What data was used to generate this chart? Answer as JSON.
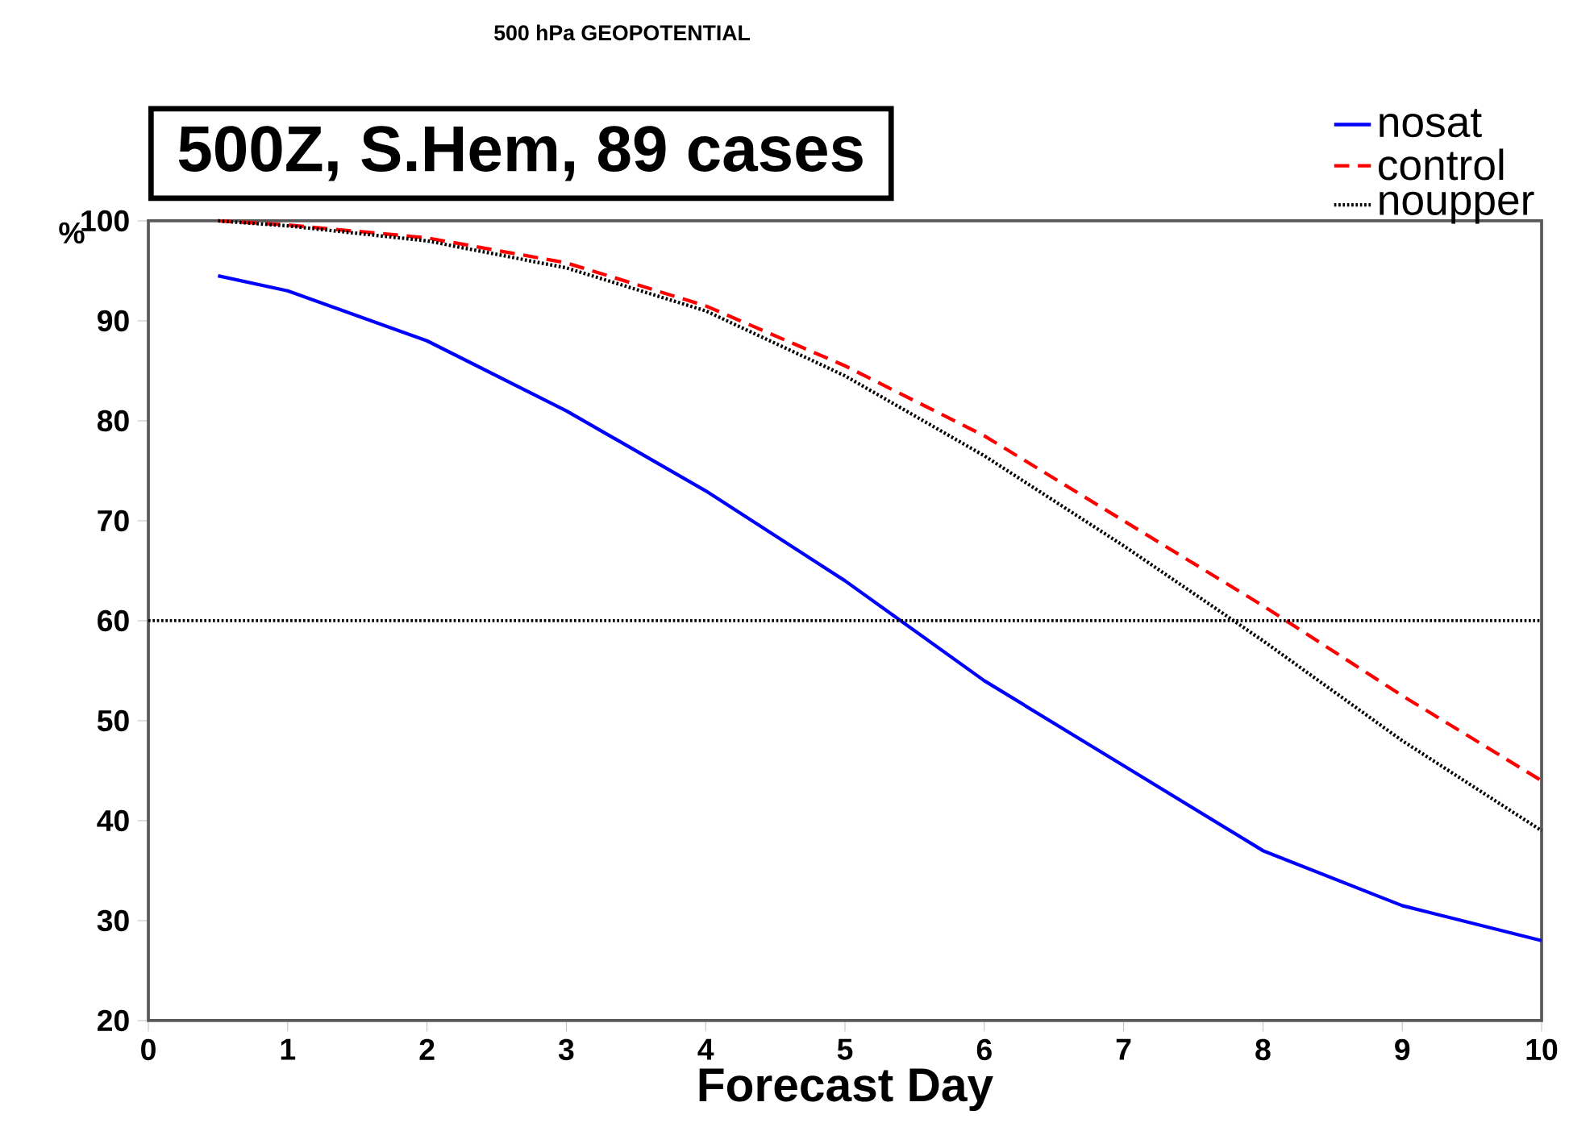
{
  "chart_data": {
    "type": "line",
    "title": "500 hPa GEOPOTENTIAL",
    "xlabel": "Forecast Day",
    "ylabel": "%",
    "annotations": [
      "500Z, S.Hem, 89 cases"
    ],
    "x": [
      0.5,
      1,
      2,
      3,
      4,
      5,
      6,
      7,
      8,
      9,
      10
    ],
    "series": [
      {
        "name": "nosat",
        "color": "#0000ff",
        "line_style": "solid",
        "values": [
          94.5,
          93,
          88,
          81,
          73,
          64,
          54,
          45.5,
          37,
          31.5,
          28
        ]
      },
      {
        "name": "control",
        "color": "#ff0000",
        "line_style": "dashed",
        "values": [
          100,
          99.6,
          98.3,
          95.8,
          91.5,
          85.5,
          78.5,
          70,
          61.5,
          52.5,
          44
        ]
      },
      {
        "name": "noupper",
        "color": "#000000",
        "line_style": "dotted",
        "values": [
          100,
          99.5,
          98,
          95.3,
          91,
          84.5,
          76.5,
          67.5,
          58,
          48,
          39
        ]
      }
    ],
    "xlim": [
      0,
      10
    ],
    "ylim": [
      20,
      100
    ],
    "xticks": [
      0,
      1,
      2,
      3,
      4,
      5,
      6,
      7,
      8,
      9,
      10
    ],
    "yticks": [
      20,
      30,
      40,
      50,
      60,
      70,
      80,
      90,
      100
    ],
    "ref_lines": [
      {
        "axis": "y",
        "value": 60,
        "color": "#000000",
        "line_style": "dotted"
      }
    ],
    "grid": false,
    "legend": "top right",
    "marker": "none"
  }
}
